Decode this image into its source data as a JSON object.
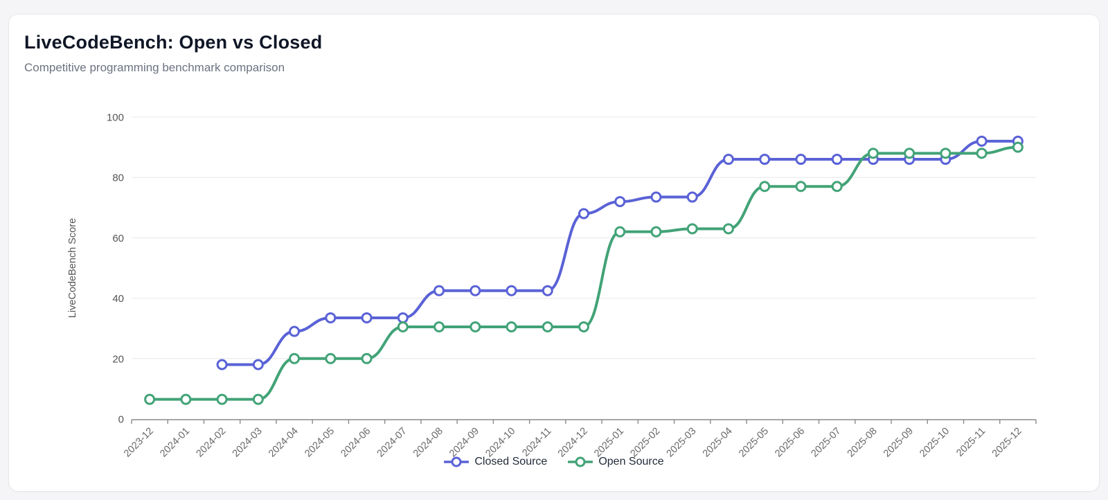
{
  "card": {
    "title": "LiveCodeBench: Open vs Closed",
    "subtitle": "Competitive programming benchmark comparison"
  },
  "colors": {
    "closed_source": "#5a62d6",
    "open_source": "#42a377",
    "grid": "#e7e7e7",
    "axis": "#8a8a8a",
    "tick_label": "#555555",
    "x_label": "#686868",
    "title_text": "#0f1626",
    "subtitle_text": "#6b7280",
    "marker_fill": "#ffffff"
  },
  "chart_data": {
    "type": "line",
    "title": "LiveCodeBench: Open vs Closed",
    "subtitle": "Competitive programming benchmark comparison",
    "xlabel": "",
    "ylabel": "LiveCodeBench Score",
    "ylim": [
      0,
      100
    ],
    "yticks": [
      0,
      20,
      40,
      60,
      80,
      100
    ],
    "grid": true,
    "legend_position": "bottom",
    "line_style": "smooth-step",
    "marker": "open-circle",
    "categories": [
      "2023-12",
      "2024-01",
      "2024-02",
      "2024-03",
      "2024-04",
      "2024-05",
      "2024-06",
      "2024-07",
      "2024-08",
      "2024-09",
      "2024-10",
      "2024-11",
      "2024-12",
      "2025-01",
      "2025-02",
      "2025-03",
      "2025-04",
      "2025-05",
      "2025-06",
      "2025-07",
      "2025-08",
      "2025-09",
      "2025-10",
      "2025-11",
      "2025-12"
    ],
    "series": [
      {
        "name": "Closed Source",
        "color": "#5a62d6",
        "values": [
          null,
          null,
          18,
          18,
          29,
          33.5,
          33.5,
          33.5,
          42.5,
          42.5,
          42.5,
          42.5,
          68,
          72,
          73.5,
          73.5,
          86,
          86,
          86,
          86,
          86,
          86,
          86,
          92,
          92
        ]
      },
      {
        "name": "Open Source",
        "color": "#42a377",
        "values": [
          6.5,
          6.5,
          6.5,
          6.5,
          20,
          20,
          20,
          30.5,
          30.5,
          30.5,
          30.5,
          30.5,
          30.5,
          62,
          62,
          63,
          63,
          77,
          77,
          77,
          88,
          88,
          88,
          88,
          90
        ]
      }
    ]
  }
}
